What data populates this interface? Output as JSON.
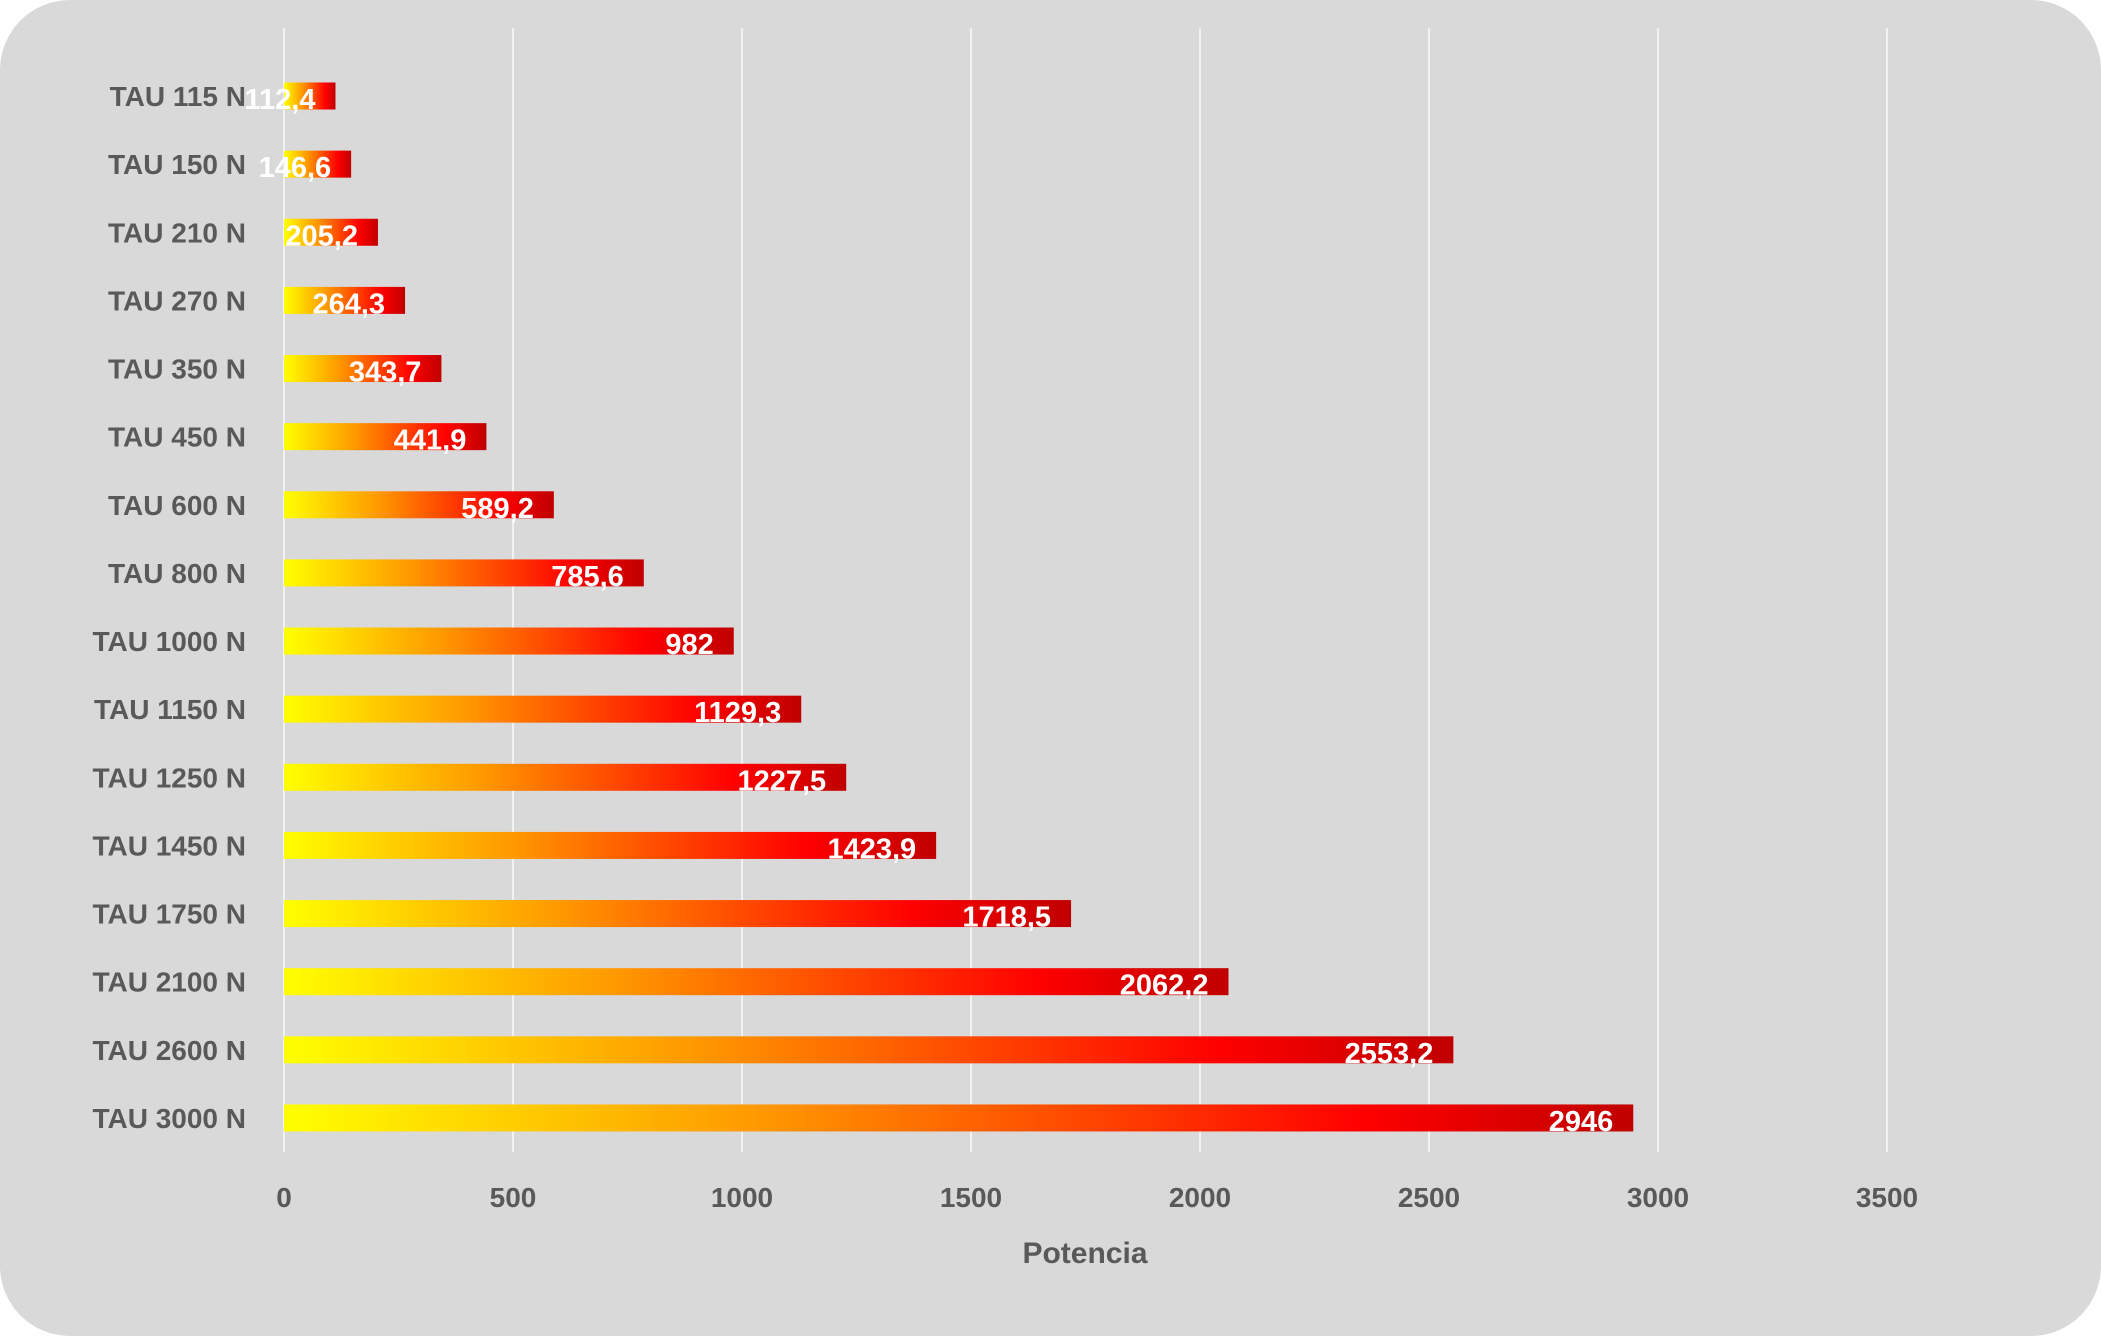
{
  "chart_data": {
    "type": "bar",
    "orientation": "horizontal",
    "title": "",
    "xlabel": "Potencia",
    "ylabel": "",
    "xlim": [
      0,
      3500
    ],
    "x_ticks": [
      0,
      500,
      1000,
      1500,
      2000,
      2500,
      3000,
      3500
    ],
    "grid": true,
    "categories": [
      "TAU 115 N",
      "TAU 150 N",
      "TAU 210 N",
      "TAU 270 N",
      "TAU 350 N",
      "TAU 450 N",
      "TAU 600 N",
      "TAU 800 N",
      "TAU 1000 N",
      "TAU 1150 N",
      "TAU 1250 N",
      "TAU 1450 N",
      "TAU 1750 N",
      "TAU 2100 N",
      "TAU 2600 N",
      "TAU 3000 N"
    ],
    "values": [
      112.4,
      146.6,
      205.2,
      264.3,
      343.7,
      441.9,
      589.2,
      785.6,
      982,
      1129.3,
      1227.5,
      1423.9,
      1718.5,
      2062.2,
      2553.2,
      2946
    ],
    "data_labels": [
      "112,4",
      "146,6",
      "205,2",
      "264,3",
      "343,7",
      "441,9",
      "589,2",
      "785,6",
      "982",
      "1129,3",
      "1227,5",
      "1423,9",
      "1718,5",
      "2062,2",
      "2553,2",
      "2946"
    ],
    "gradient_colors": [
      "#ffff00",
      "#ff9900",
      "#ff0000",
      "#c00000"
    ],
    "background": "#d9d9d9"
  }
}
